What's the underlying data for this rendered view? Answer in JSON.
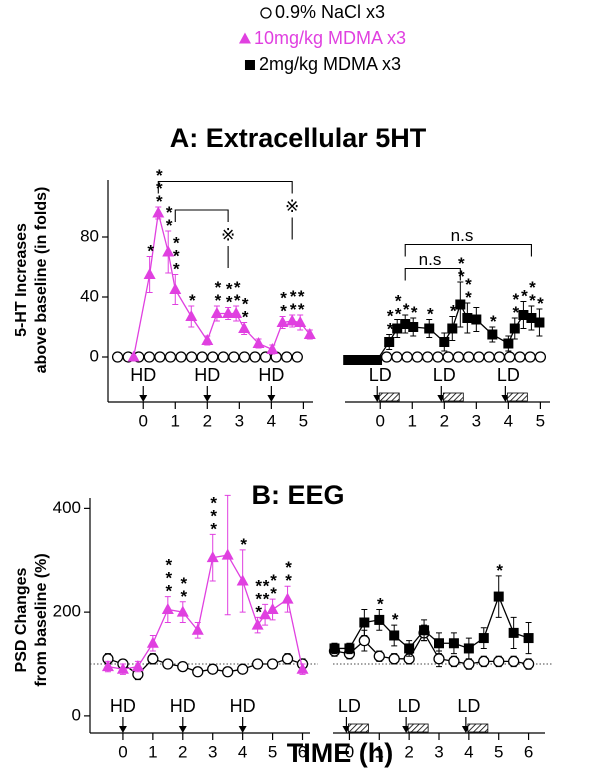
{
  "legend": [
    {
      "name": "0.9% NaCl x3",
      "marker": "circle",
      "color": "#000000"
    },
    {
      "name": "10mg/kg MDMA x3",
      "marker": "triangle",
      "color": "#e040e0"
    },
    {
      "name": "2mg/kg MDMA x3",
      "marker": "square",
      "color": "#000000"
    }
  ],
  "xlabel": "TIME (h)",
  "chart_data": [
    {
      "type": "line",
      "title": "A: Extracellular 5HT",
      "ylabel": [
        "5-HT Increases",
        "above baseline (in folds)"
      ],
      "xlim": [
        -1.1,
        5.3
      ],
      "ylim": [
        -30,
        118
      ],
      "xticks": [
        0,
        1,
        2,
        3,
        4,
        5
      ],
      "yticks": [
        0,
        40,
        80
      ],
      "doses": [
        {
          "x": 0,
          "label": "HD"
        },
        {
          "x": 2,
          "label": "HD"
        },
        {
          "x": 4,
          "label": "HD"
        }
      ],
      "infusion_bars": false,
      "brackets": [
        {
          "x1": 0.47,
          "x2": 4.65,
          "y": 117,
          "text": "※",
          "label_position": "end"
        },
        {
          "x1": 1.0,
          "x2": 2.65,
          "y": 98,
          "text": "※",
          "label_position": "end"
        }
      ],
      "series": [
        {
          "marker": "circle",
          "color": "#000000",
          "x": [
            -0.8,
            -0.47,
            -0.14,
            0.19,
            0.52,
            0.85,
            1.18,
            1.51,
            1.84,
            2.17,
            2.5,
            2.83,
            3.16,
            3.49,
            3.82,
            4.15,
            4.48,
            4.81
          ],
          "values": [
            0,
            0,
            0,
            0,
            0,
            0,
            0,
            0,
            0,
            0,
            0,
            0,
            0,
            0,
            0,
            0,
            0,
            0
          ]
        },
        {
          "marker": "triangle",
          "color": "#e040e0",
          "x": [
            -0.3,
            0.2,
            0.47,
            0.78,
            1.0,
            1.5,
            2.0,
            2.3,
            2.65,
            2.9,
            3.15,
            3.6,
            4.03,
            4.35,
            4.65,
            4.9,
            5.2
          ],
          "values": [
            0,
            55,
            96,
            70,
            45,
            27,
            11,
            29,
            29,
            29,
            19,
            9,
            5,
            23,
            24,
            23,
            15
          ],
          "errors": [
            0,
            12,
            4,
            14,
            10,
            7,
            3,
            5,
            4,
            5,
            4,
            3,
            3,
            4,
            4,
            5,
            3
          ],
          "stars": [
            null,
            "*",
            "***",
            "**",
            "***",
            "*",
            null,
            "**",
            "**",
            "**",
            "**",
            null,
            null,
            "**",
            "**",
            "**",
            null
          ]
        }
      ]
    },
    {
      "type": "line",
      "xlim": [
        -1.1,
        5.3
      ],
      "ylim": [
        -30,
        118
      ],
      "xticks": [
        0,
        1,
        2,
        3,
        4,
        5
      ],
      "doses": [
        {
          "x": 0,
          "label": "LD"
        },
        {
          "x": 2,
          "label": "LD"
        },
        {
          "x": 4,
          "label": "LD"
        }
      ],
      "infusion_bars": true,
      "brackets": [
        {
          "x1": 0.78,
          "x2": 4.72,
          "y": 75,
          "text": "n.s",
          "label_position": "center"
        },
        {
          "x1": 0.78,
          "x2": 2.5,
          "y": 59,
          "text": "n.s",
          "label_position": "center"
        }
      ],
      "series": [
        {
          "marker": "circle",
          "color": "#000000",
          "x": [
            0.2,
            0.52,
            0.84,
            1.16,
            1.48,
            1.8,
            2.12,
            2.44,
            2.76,
            3.08,
            3.4,
            3.72,
            4.04,
            4.36,
            4.68,
            5.0
          ],
          "values": [
            0,
            0,
            0,
            0,
            0,
            0,
            0,
            0,
            0,
            0,
            0,
            0,
            0,
            0,
            0,
            0
          ]
        },
        {
          "marker": "square",
          "color": "#000000",
          "x": [
            -1.0,
            -0.85,
            -0.7,
            -0.55,
            -0.4,
            -0.25,
            -0.1,
            0.28,
            0.53,
            0.78,
            1.03,
            1.53,
            2.0,
            2.25,
            2.5,
            2.72,
            3.0,
            3.5,
            4.0,
            4.2,
            4.47,
            4.72,
            4.97
          ],
          "values": [
            -2,
            -2,
            -2,
            -2,
            -2,
            -2,
            -2,
            10,
            19,
            22,
            20,
            19,
            10,
            19,
            35,
            26,
            25,
            15,
            9,
            19,
            28,
            26,
            23
          ],
          "errors": [
            0,
            0,
            0,
            0,
            0,
            0,
            0,
            5,
            6,
            6,
            6,
            6,
            6,
            8,
            15,
            10,
            8,
            5,
            5,
            7,
            9,
            8,
            9
          ],
          "stars": [
            null,
            null,
            null,
            null,
            null,
            null,
            null,
            "**",
            "**",
            "*",
            "*",
            "*",
            null,
            "*",
            "**",
            "**",
            null,
            "*",
            null,
            "**",
            "*",
            "**",
            "*"
          ]
        }
      ]
    },
    {
      "type": "line",
      "title": "B: EEG",
      "ylabel": [
        "PSD Changes",
        "from baseline (%)"
      ],
      "xlim": [
        -1.1,
        6.25
      ],
      "ylim": [
        -33,
        420
      ],
      "xticks": [
        0,
        1,
        2,
        3,
        4,
        5,
        6
      ],
      "yticks": [
        0,
        200,
        400
      ],
      "reference_line": 100,
      "doses": [
        {
          "x": 0,
          "label": "HD"
        },
        {
          "x": 2,
          "label": "HD"
        },
        {
          "x": 4,
          "label": "HD"
        }
      ],
      "infusion_bars": false,
      "series": [
        {
          "marker": "circle",
          "color": "#000000",
          "x": [
            -0.5,
            0,
            0.5,
            1,
            1.5,
            2,
            2.5,
            3,
            3.5,
            4,
            4.5,
            5,
            5.5,
            6
          ],
          "values": [
            110,
            100,
            80,
            110,
            100,
            95,
            85,
            90,
            85,
            90,
            100,
            100,
            110,
            100
          ],
          "errors": [
            10,
            8,
            10,
            10,
            8,
            8,
            8,
            8,
            8,
            8,
            8,
            8,
            10,
            10
          ]
        },
        {
          "marker": "triangle",
          "color": "#e040e0",
          "x": [
            -0.5,
            0,
            0.5,
            1,
            1.5,
            2,
            2.5,
            3,
            3.5,
            4,
            4.5,
            4.75,
            5,
            5.5,
            6
          ],
          "values": [
            95,
            90,
            95,
            140,
            205,
            200,
            165,
            305,
            310,
            260,
            175,
            195,
            205,
            225,
            90
          ],
          "errors": [
            10,
            10,
            10,
            15,
            25,
            20,
            15,
            45,
            115,
            60,
            15,
            20,
            20,
            25,
            10
          ],
          "stars": [
            null,
            null,
            null,
            null,
            "***",
            "**",
            null,
            "***",
            null,
            "*",
            "***",
            "**",
            "**",
            "**",
            null
          ]
        }
      ]
    },
    {
      "type": "line",
      "xlim": [
        -0.55,
        6.55
      ],
      "ylim": [
        -33,
        420
      ],
      "xticks": [
        0,
        1,
        2,
        3,
        4,
        5,
        6
      ],
      "reference_line": 100,
      "doses": [
        {
          "x": 0,
          "label": "LD"
        },
        {
          "x": 2,
          "label": "LD"
        },
        {
          "x": 4,
          "label": "LD"
        }
      ],
      "infusion_bars": true,
      "series": [
        {
          "marker": "circle",
          "color": "#000000",
          "x": [
            -0.5,
            0,
            0.5,
            1,
            1.5,
            2,
            2.5,
            3,
            3.5,
            4,
            4.5,
            5,
            5.5,
            6
          ],
          "values": [
            125,
            120,
            145,
            115,
            110,
            110,
            160,
            110,
            105,
            100,
            105,
            105,
            105,
            100
          ],
          "errors": [
            10,
            10,
            20,
            10,
            10,
            10,
            15,
            15,
            10,
            10,
            10,
            10,
            10,
            10
          ]
        },
        {
          "marker": "square",
          "color": "#000000",
          "x": [
            -0.5,
            0,
            0.5,
            1,
            1.5,
            2,
            2.5,
            3,
            3.5,
            4,
            4.5,
            5,
            5.5,
            6
          ],
          "values": [
            130,
            130,
            180,
            185,
            155,
            130,
            165,
            140,
            140,
            130,
            150,
            230,
            160,
            150
          ],
          "errors": [
            10,
            10,
            25,
            20,
            20,
            15,
            20,
            20,
            20,
            20,
            20,
            40,
            30,
            30
          ],
          "stars": [
            null,
            null,
            null,
            "*",
            "*",
            null,
            null,
            null,
            null,
            null,
            null,
            "*",
            null,
            null
          ]
        }
      ]
    }
  ]
}
